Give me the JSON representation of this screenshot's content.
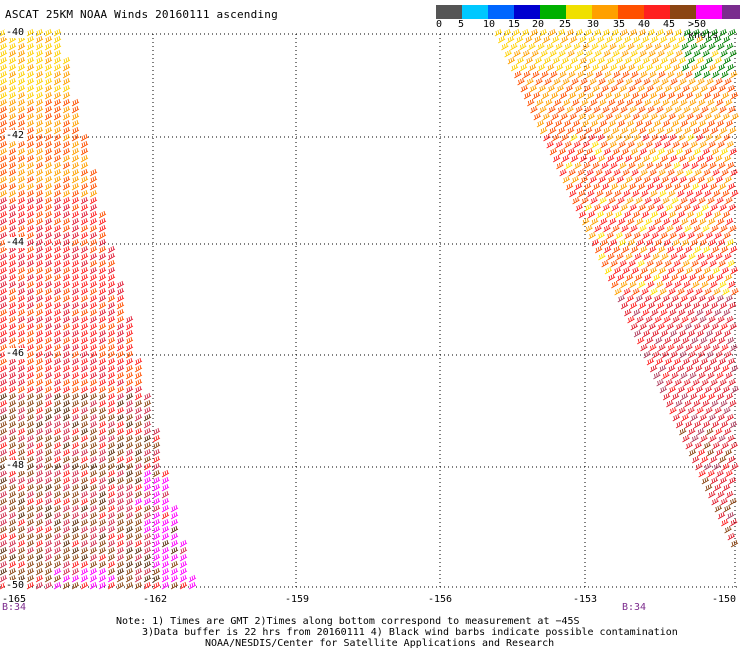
{
  "title": "ASCAT 25KM NOAA Winds 20160111 ascending",
  "colorbar": {
    "colors": [
      "#555555",
      "#00c8ff",
      "#0066ff",
      "#0000d0",
      "#00b000",
      "#f0e000",
      "#ffa000",
      "#ff5000",
      "#ff2020",
      "#8b4513",
      "#ff00ff",
      "#7a2c8e"
    ],
    "labels": [
      "0",
      "5",
      "10",
      "15",
      "20",
      "25",
      "30",
      "35",
      "40",
      "45",
      ">50 knots"
    ]
  },
  "axes": {
    "lat_labels": [
      "-40",
      "-42",
      "-44",
      "-46",
      "-48",
      "-50"
    ],
    "lon_labels": [
      "-165",
      "-162",
      "-159",
      "-156",
      "-153",
      "-150"
    ]
  },
  "pass_labels": {
    "left": "B:34",
    "right": "B:34"
  },
  "notes": {
    "line1": "Note: 1) Times are GMT 2)Times along bottom correspond to measurement at −45S",
    "line2": "3)Data buffer is 22 hrs from 20160111 4) Black wind barbs indicate possible contamination",
    "line3": "NOAA/NESDIS/Center for Satellite Applications and Research"
  },
  "colors": {
    "grid": "#000000",
    "pass_label": "#7b2a8c"
  }
}
